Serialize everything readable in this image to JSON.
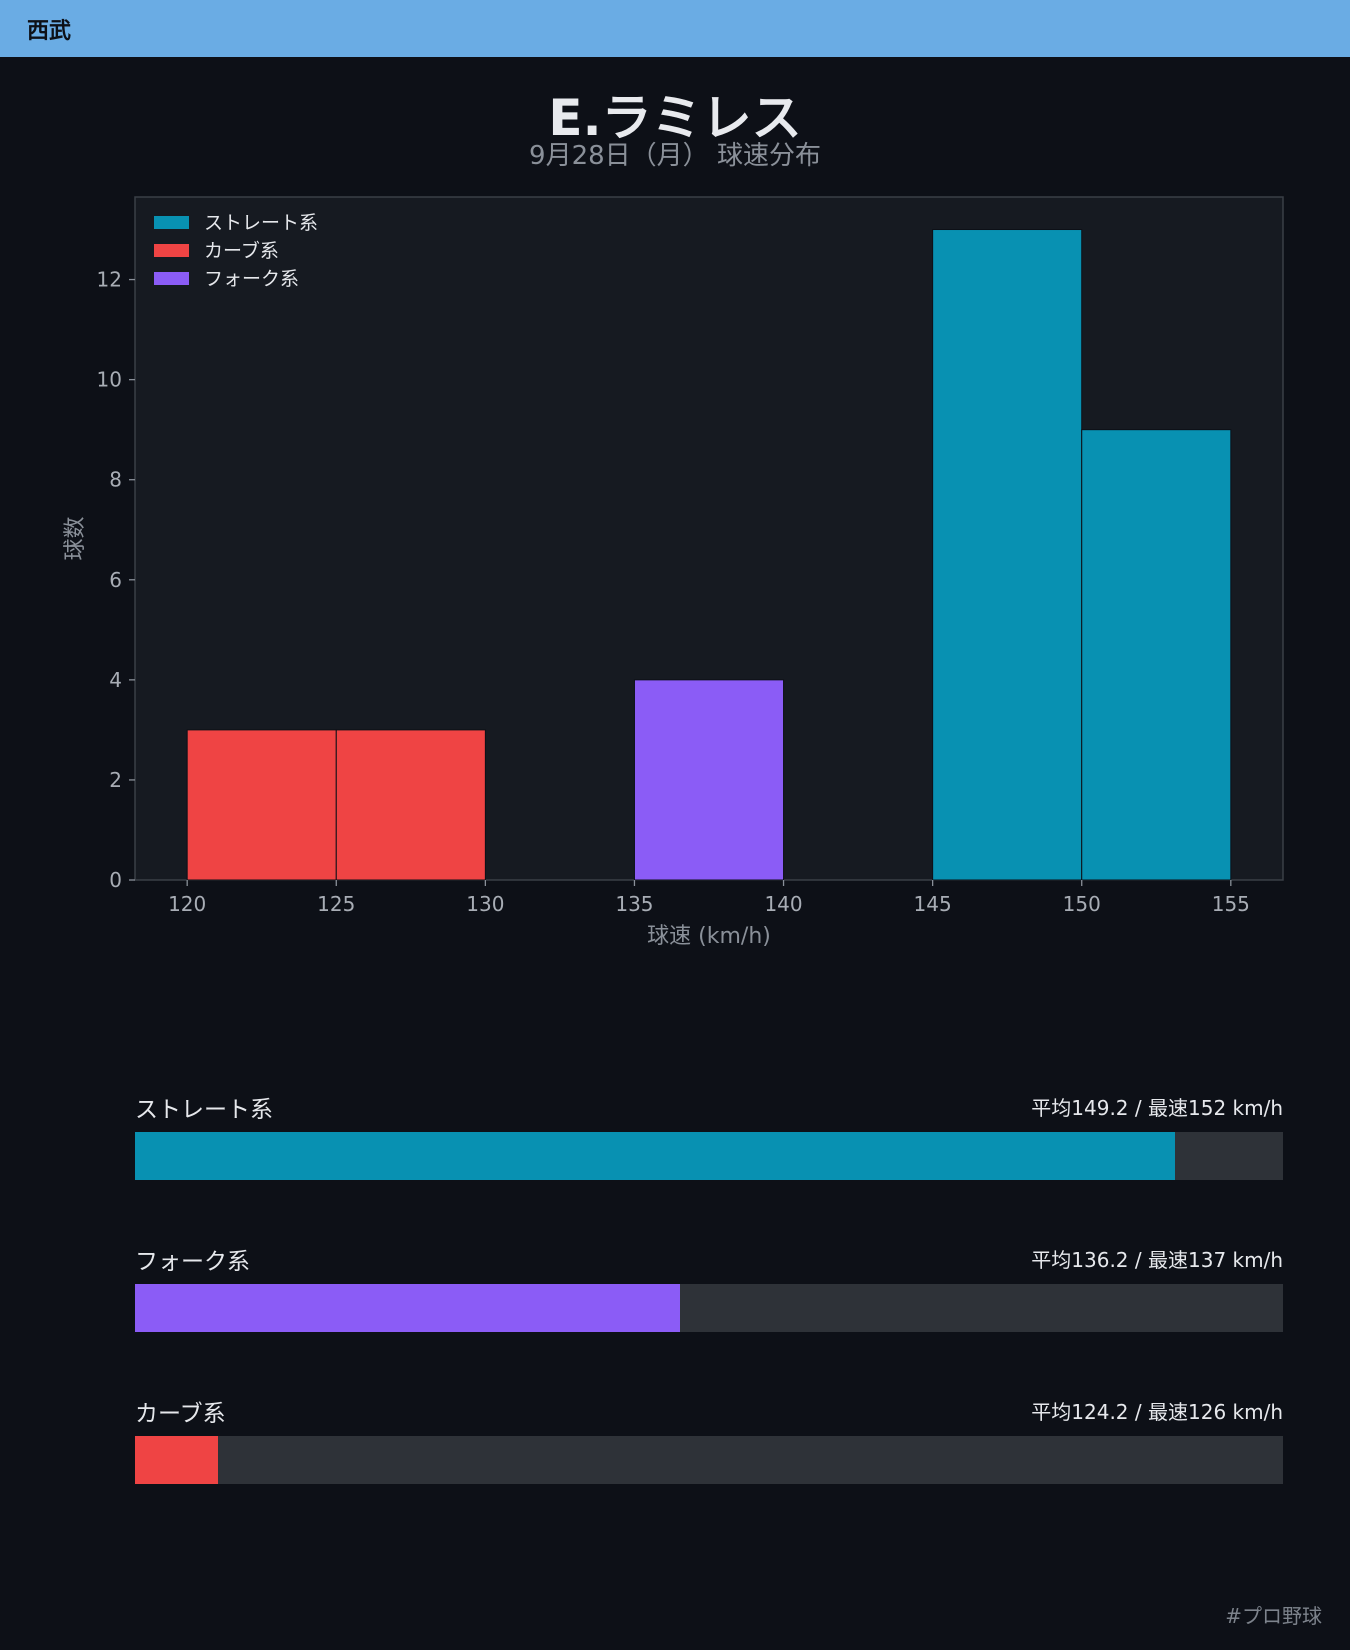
{
  "header": {
    "team": "西武"
  },
  "title": "E.ラミレス",
  "subtitle": "9月28日（月） 球速分布",
  "chart_data": {
    "type": "bar",
    "xlabel": "球速 (km/h)",
    "ylabel": "球数",
    "xlim": [
      118.25,
      156.75
    ],
    "ylim": [
      0,
      13.65
    ],
    "xticks": [
      120,
      125,
      130,
      135,
      140,
      145,
      150,
      155
    ],
    "yticks": [
      0,
      2,
      4,
      6,
      8,
      10,
      12
    ],
    "grid": false,
    "legend_position": "top-left",
    "series": [
      {
        "name": "ストレート系",
        "color": "#0891b2",
        "bins": [
          [
            145,
            150,
            13
          ],
          [
            150,
            155,
            9
          ]
        ]
      },
      {
        "name": "カーブ系",
        "color": "#ef4444",
        "bins": [
          [
            120,
            125,
            3
          ],
          [
            125,
            130,
            3
          ]
        ]
      },
      {
        "name": "フォーク系",
        "color": "#8b5cf6",
        "bins": [
          [
            135,
            140,
            4
          ]
        ]
      }
    ]
  },
  "stats": [
    {
      "name": "ストレート系",
      "value_text": "平均149.2 / 最速152 km/h",
      "color": "#0891b2",
      "fill_fraction": 0.906
    },
    {
      "name": "フォーク系",
      "value_text": "平均136.2 / 最速137 km/h",
      "color": "#8b5cf6",
      "fill_fraction": 0.475
    },
    {
      "name": "カーブ系",
      "value_text": "平均124.2 / 最速126 km/h",
      "color": "#ef4444",
      "fill_fraction": 0.072
    }
  ],
  "footer": {
    "hashtag": "#プロ野球"
  }
}
